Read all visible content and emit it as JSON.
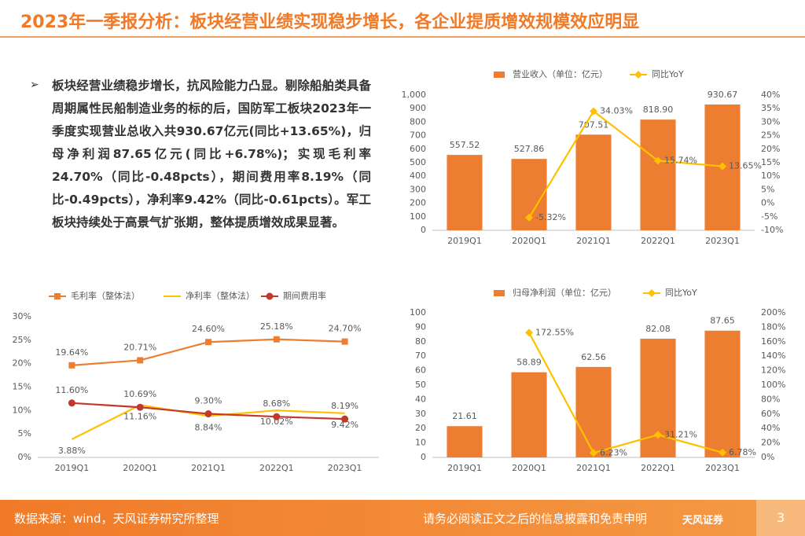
{
  "title": "2023年一季报分析：板块经营业绩实现稳步增长，各企业提质增效规模效应明显",
  "bullet": "板块经营业绩稳步增长，抗风险能力凸显。剔除船舶类具备周期属性民船制造业务的标的后，国防军工板块2023年一季度实现营业总收入共930.67亿元(同比+13.65%)，归母净利润87.65亿元(同比+6.78%)；实现毛利率24.70%（同比-0.48pcts），期间费用率8.19%（同比-0.49pcts），净利率9.42%（同比-0.61pcts）。军工板块持续处于高景气扩张期，整体提质增效成果显著。",
  "footer": {
    "source": "数据来源：wind，天风证券研究所整理",
    "disclaimer": "请务必阅读正文之后的信息披露和免责申明",
    "logo": "天风证券",
    "page": "3"
  },
  "chart_data": [
    {
      "type": "combo",
      "categories": [
        "2019Q1",
        "2020Q1",
        "2021Q1",
        "2022Q1",
        "2023Q1"
      ],
      "series": [
        {
          "name": "营业收入（单位：亿元）",
          "type": "bar",
          "color": "#ed7d31",
          "values": [
            557.52,
            527.86,
            707.51,
            818.9,
            930.67
          ],
          "value_labels": [
            "557.52",
            "527.86",
            "707.51",
            "818.90",
            "930.67"
          ]
        },
        {
          "name": "同比YoY",
          "type": "line",
          "axis": "y2",
          "color": "#ffc000",
          "marker": "diamond",
          "values": [
            null,
            -5.32,
            34.03,
            15.74,
            13.65
          ],
          "value_labels": [
            null,
            "-5.32%",
            "34.03%",
            "15.74%",
            "13.65%"
          ]
        }
      ],
      "ylim": [
        0,
        1000
      ],
      "yticks": [
        0,
        100,
        200,
        300,
        400,
        500,
        600,
        700,
        800,
        900,
        {
          "value": 1000,
          "label": "1,000"
        }
      ],
      "y2lim": [
        -10,
        40
      ],
      "y2ticks": [
        {
          "value": -10,
          "label": "-10%"
        },
        {
          "value": -5,
          "label": "-5%"
        },
        {
          "value": 0,
          "label": "0%"
        },
        {
          "value": 5,
          "label": "5%"
        },
        {
          "value": 10,
          "label": "10%"
        },
        {
          "value": 15,
          "label": "15%"
        },
        {
          "value": 20,
          "label": "20%"
        },
        {
          "value": 25,
          "label": "25%"
        },
        {
          "value": 30,
          "label": "30%"
        },
        {
          "value": 35,
          "label": "35%"
        },
        {
          "value": 40,
          "label": "40%"
        }
      ],
      "grid": false
    },
    {
      "type": "line",
      "categories": [
        "2019Q1",
        "2020Q1",
        "2021Q1",
        "2022Q1",
        "2023Q1"
      ],
      "series": [
        {
          "name": "毛利率（整体法）",
          "color": "#ed7d31",
          "marker": "square",
          "values": [
            19.64,
            20.71,
            24.6,
            25.18,
            24.7
          ],
          "value_labels": [
            "19.64%",
            "20.71%",
            "24.60%",
            "25.18%",
            "24.70%"
          ]
        },
        {
          "name": "净利率（整体法）",
          "color": "#ffc000",
          "marker": "none",
          "values": [
            3.88,
            11.16,
            8.84,
            10.02,
            9.42
          ],
          "value_labels": [
            "3.88%",
            "11.16%",
            "8.84%",
            "10.02%",
            "9.42%"
          ]
        },
        {
          "name": "期间费用率",
          "color": "#c0392b",
          "marker": "circle",
          "values": [
            11.6,
            10.69,
            9.3,
            8.68,
            8.19
          ],
          "value_labels": [
            "11.60%",
            "10.69%",
            "9.30%",
            "8.68%",
            "8.19%"
          ]
        }
      ],
      "ylim": [
        0,
        30
      ],
      "yticks": [
        {
          "value": 0,
          "label": "0%"
        },
        {
          "value": 5,
          "label": "5%"
        },
        {
          "value": 10,
          "label": "10%"
        },
        {
          "value": 15,
          "label": "15%"
        },
        {
          "value": 20,
          "label": "20%"
        },
        {
          "value": 25,
          "label": "25%"
        },
        {
          "value": 30,
          "label": "30%"
        }
      ],
      "grid": false
    },
    {
      "type": "combo",
      "categories": [
        "2019Q1",
        "2020Q1",
        "2021Q1",
        "2022Q1",
        "2023Q1"
      ],
      "series": [
        {
          "name": "归母净利润（单位：亿元）",
          "type": "bar",
          "color": "#ed7d31",
          "values": [
            21.61,
            58.89,
            62.56,
            82.08,
            87.65
          ]
        },
        {
          "name": "同比YoY",
          "type": "line",
          "axis": "y2",
          "color": "#ffc000",
          "marker": "diamond",
          "values": [
            null,
            172.55,
            6.23,
            31.21,
            6.78
          ],
          "value_labels": [
            null,
            "172.55%",
            "6.23%",
            "31.21%",
            "6.78%"
          ]
        }
      ],
      "ylim": [
        0,
        100
      ],
      "yticks": [
        0,
        10,
        20,
        30,
        40,
        50,
        60,
        70,
        80,
        90,
        100
      ],
      "y2lim": [
        0,
        200
      ],
      "y2ticks": [
        {
          "value": 0,
          "label": "0%"
        },
        {
          "value": 20,
          "label": "20%"
        },
        {
          "value": 40,
          "label": "40%"
        },
        {
          "value": 60,
          "label": "60%"
        },
        {
          "value": 80,
          "label": "80%"
        },
        {
          "value": 100,
          "label": "100%"
        },
        {
          "value": 120,
          "label": "120%"
        },
        {
          "value": 140,
          "label": "140%"
        },
        {
          "value": 160,
          "label": "160%"
        },
        {
          "value": 180,
          "label": "180%"
        },
        {
          "value": 200,
          "label": "200%"
        }
      ],
      "grid": false
    }
  ]
}
